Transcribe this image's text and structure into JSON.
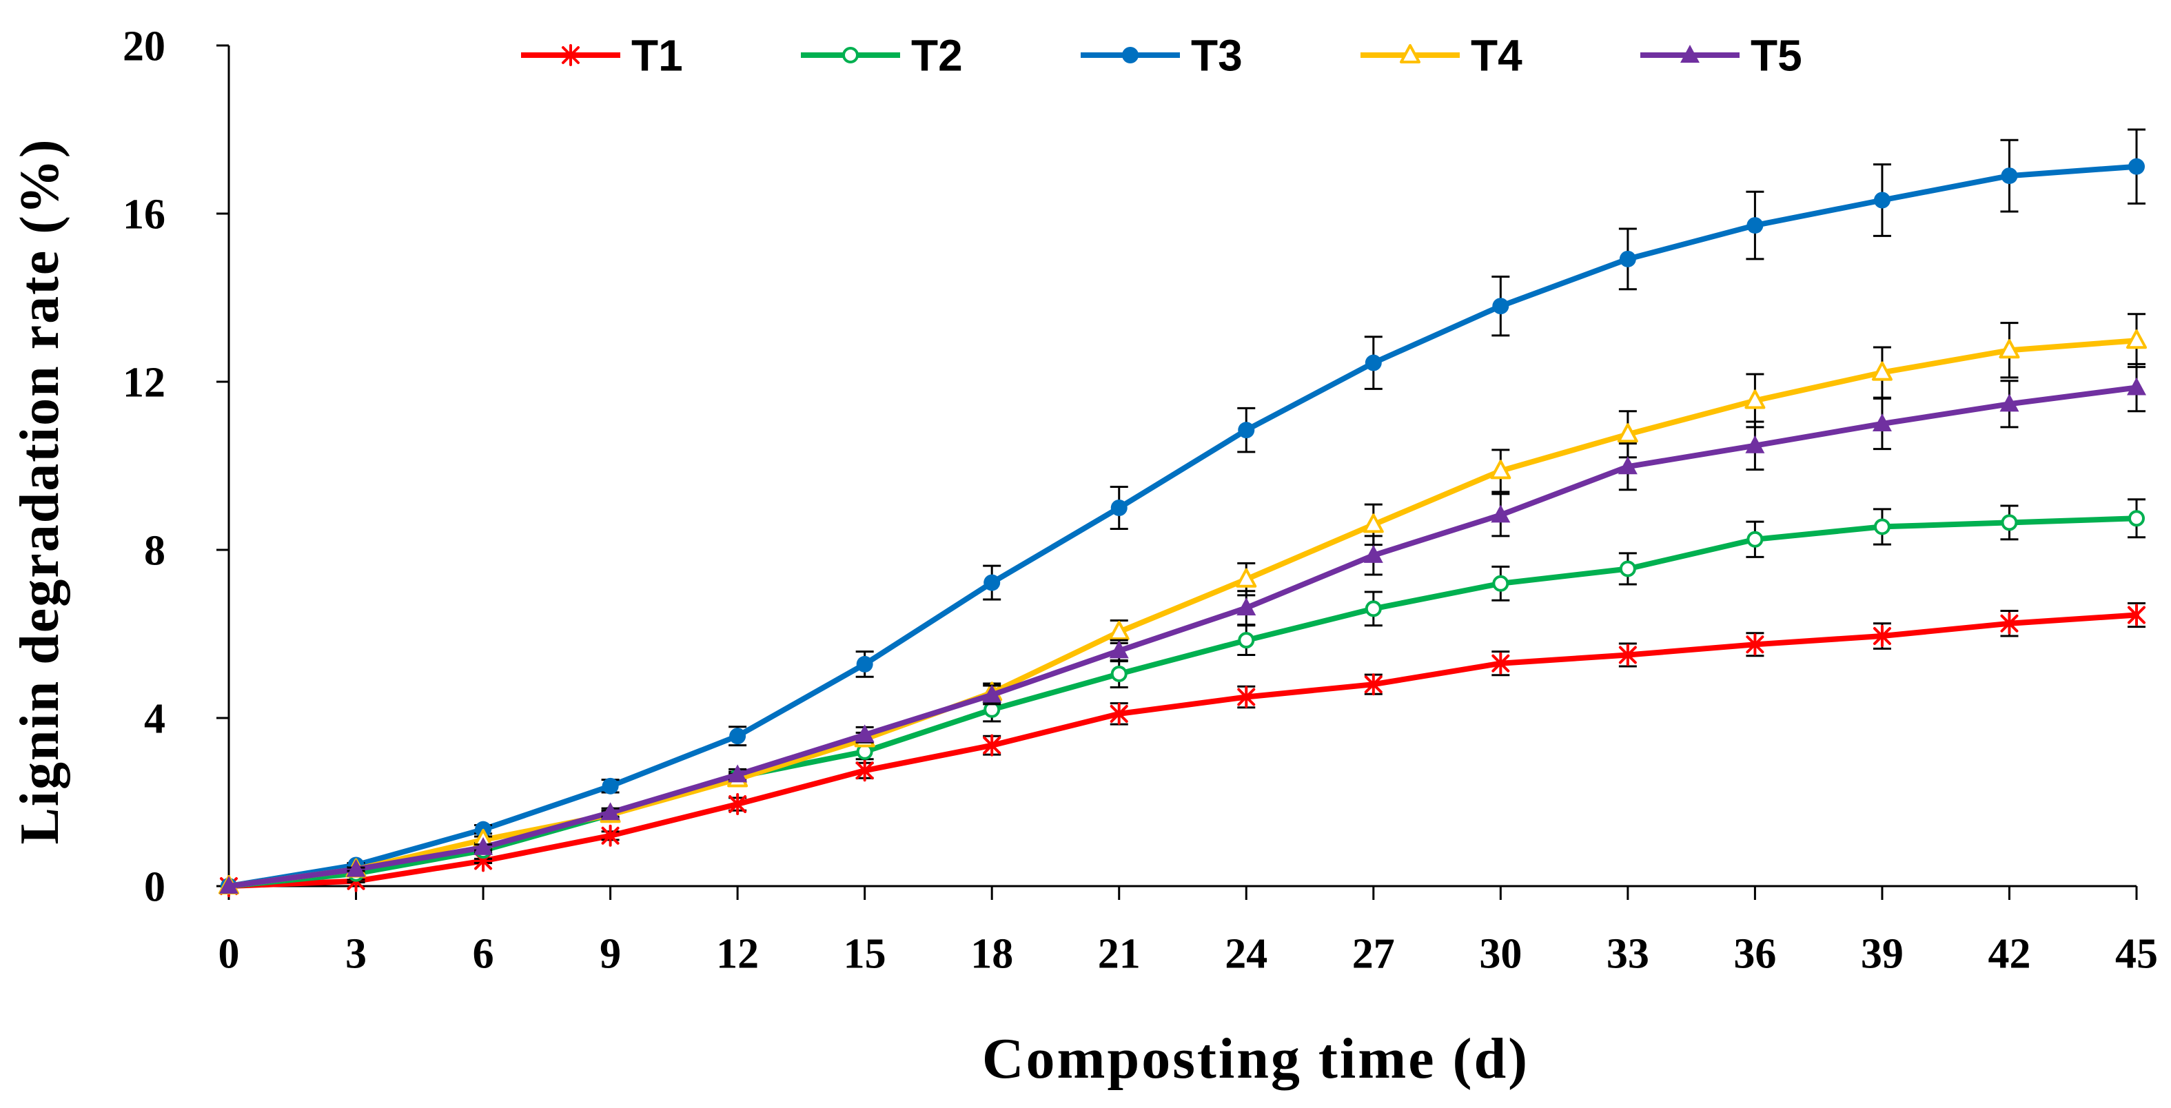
{
  "chart_data": {
    "type": "line",
    "xlabel": "Composting time (d)",
    "ylabel": "Lignin degradation rate (%)",
    "x": [
      0,
      3,
      6,
      9,
      12,
      15,
      18,
      21,
      24,
      27,
      30,
      33,
      36,
      39,
      42,
      45
    ],
    "xlim": [
      0,
      45
    ],
    "ylim": [
      0,
      20
    ],
    "yticks": [
      0,
      4,
      8,
      12,
      16,
      20
    ],
    "grid": false,
    "legend": "top",
    "series": [
      {
        "name": "T1",
        "color": "#FF0000",
        "marker": "asterisk",
        "values": [
          0,
          0.12,
          0.6,
          1.2,
          1.95,
          2.75,
          3.35,
          4.1,
          4.5,
          4.8,
          5.3,
          5.5,
          5.75,
          5.95,
          6.25,
          6.45
        ],
        "errors": [
          0,
          0.03,
          0.05,
          0.1,
          0.15,
          0.18,
          0.22,
          0.25,
          0.25,
          0.23,
          0.28,
          0.27,
          0.27,
          0.3,
          0.3,
          0.28
        ]
      },
      {
        "name": "T2",
        "color": "#00B050",
        "marker": "open-circle",
        "values": [
          0,
          0.3,
          0.85,
          1.7,
          2.6,
          3.2,
          4.2,
          5.05,
          5.85,
          6.6,
          7.2,
          7.55,
          8.25,
          8.55,
          8.65,
          8.75
        ],
        "errors": [
          0,
          0.03,
          0.05,
          0.08,
          0.12,
          0.18,
          0.28,
          0.32,
          0.35,
          0.4,
          0.4,
          0.37,
          0.42,
          0.42,
          0.4,
          0.45
        ]
      },
      {
        "name": "T3",
        "color": "#0070C0",
        "marker": "filled-circle",
        "values": [
          0,
          0.5,
          1.35,
          2.38,
          3.57,
          5.28,
          7.22,
          9.0,
          10.85,
          12.45,
          13.8,
          14.92,
          15.72,
          16.32,
          16.9,
          17.12
        ],
        "errors": [
          0,
          0.05,
          0.1,
          0.15,
          0.22,
          0.3,
          0.4,
          0.5,
          0.52,
          0.62,
          0.7,
          0.72,
          0.8,
          0.85,
          0.85,
          0.88
        ]
      },
      {
        "name": "T4",
        "color": "#FFC000",
        "marker": "open-triangle",
        "values": [
          0,
          0.4,
          1.1,
          1.7,
          2.55,
          3.5,
          4.6,
          6.05,
          7.3,
          8.6,
          9.88,
          10.75,
          11.55,
          12.22,
          12.75,
          12.98
        ],
        "errors": [
          0,
          0.04,
          0.08,
          0.1,
          0.12,
          0.15,
          0.22,
          0.27,
          0.38,
          0.48,
          0.5,
          0.55,
          0.63,
          0.6,
          0.65,
          0.63
        ]
      },
      {
        "name": "T5",
        "color": "#7030A0",
        "marker": "filled-triangle",
        "values": [
          0,
          0.4,
          0.92,
          1.75,
          2.65,
          3.6,
          4.55,
          5.6,
          6.62,
          7.87,
          8.83,
          9.98,
          10.48,
          11.0,
          11.47,
          11.86
        ],
        "errors": [
          0,
          0.04,
          0.07,
          0.1,
          0.13,
          0.18,
          0.22,
          0.25,
          0.4,
          0.46,
          0.5,
          0.55,
          0.57,
          0.6,
          0.55,
          0.56
        ]
      }
    ]
  }
}
